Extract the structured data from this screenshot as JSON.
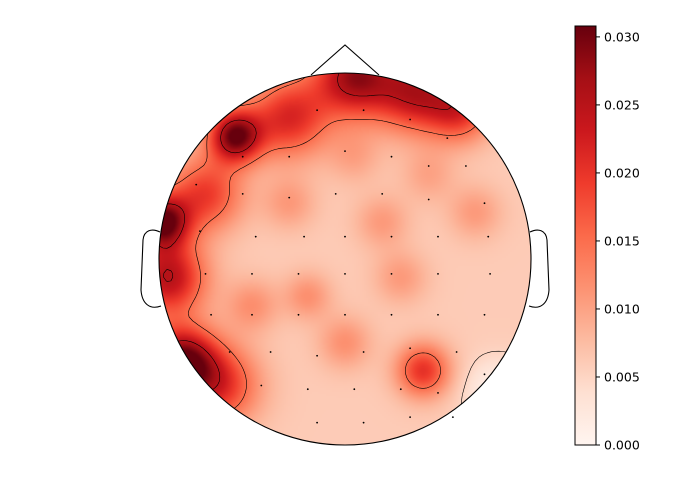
{
  "chart_data": {
    "type": "heatmap",
    "subtype": "eeg-topomap",
    "title": "",
    "colormap": "Reds",
    "colormap_stops": [
      "#fff5f0",
      "#fee0d2",
      "#fcbba1",
      "#fc9272",
      "#fb6a4a",
      "#ef3b2c",
      "#cb181d",
      "#a50f15",
      "#67000d"
    ],
    "outline_color": "#000000",
    "sensor_color": "#000000",
    "colorbar": {
      "range": [
        0,
        0.0308
      ],
      "ticks": [
        0.0,
        0.005,
        0.01,
        0.015,
        0.02,
        0.025,
        0.03
      ],
      "tick_labels": [
        "0.000",
        "0.005",
        "0.010",
        "0.015",
        "0.020",
        "0.025",
        "0.030"
      ]
    },
    "features": [
      {
        "name": "left-front-max",
        "x": -0.59,
        "y": 0.66,
        "value": 0.031,
        "sigma": 0.1
      },
      {
        "name": "front-band-left",
        "x": -0.3,
        "y": 0.76,
        "value": 0.022,
        "sigma": 0.15
      },
      {
        "name": "front-top-peak",
        "x": 0.05,
        "y": 0.98,
        "value": 0.028,
        "sigma": 0.15
      },
      {
        "name": "front-band-right",
        "x": 0.38,
        "y": 0.9,
        "value": 0.025,
        "sigma": 0.15
      },
      {
        "name": "right-front",
        "x": 0.62,
        "y": 0.8,
        "value": 0.02,
        "sigma": 0.12
      },
      {
        "name": "left-edge-upper",
        "x": -0.98,
        "y": 0.2,
        "value": 0.031,
        "sigma": 0.1
      },
      {
        "name": "left-edge-mid",
        "x": -0.95,
        "y": -0.1,
        "value": 0.026,
        "sigma": 0.14
      },
      {
        "name": "left-edge-lower",
        "x": -0.88,
        "y": -0.55,
        "value": 0.031,
        "sigma": 0.13
      },
      {
        "name": "left-lateral",
        "x": -0.75,
        "y": 0.35,
        "value": 0.02,
        "sigma": 0.14
      },
      {
        "name": "left-lower-band",
        "x": -0.68,
        "y": -0.68,
        "value": 0.021,
        "sigma": 0.15
      },
      {
        "name": "right-lower-blob",
        "x": 0.42,
        "y": -0.6,
        "value": 0.021,
        "sigma": 0.1
      },
      {
        "name": "center-a",
        "x": -0.3,
        "y": 0.3,
        "value": 0.011,
        "sigma": 0.1
      },
      {
        "name": "center-b",
        "x": 0.2,
        "y": 0.2,
        "value": 0.011,
        "sigma": 0.1
      },
      {
        "name": "center-c",
        "x": -0.2,
        "y": -0.2,
        "value": 0.012,
        "sigma": 0.09
      },
      {
        "name": "center-d",
        "x": 0.3,
        "y": -0.1,
        "value": 0.011,
        "sigma": 0.1
      },
      {
        "name": "center-e",
        "x": 0.0,
        "y": -0.45,
        "value": 0.012,
        "sigma": 0.1
      },
      {
        "name": "center-f",
        "x": -0.5,
        "y": -0.25,
        "value": 0.012,
        "sigma": 0.1
      },
      {
        "name": "center-g",
        "x": 0.7,
        "y": 0.25,
        "value": 0.011,
        "sigma": 0.1
      },
      {
        "name": "center-h",
        "x": 0.45,
        "y": 0.45,
        "value": 0.01,
        "sigma": 0.1
      },
      {
        "name": "center-i",
        "x": 0.05,
        "y": 0.55,
        "value": 0.01,
        "sigma": 0.1
      },
      {
        "name": "right-bottom-min",
        "x": 0.82,
        "y": -0.72,
        "value": 0.0,
        "sigma": 0.12
      }
    ],
    "baseline_value": 0.006,
    "sensors": [
      [
        -0.15,
        0.8
      ],
      [
        0.1,
        0.8
      ],
      [
        0.35,
        0.75
      ],
      [
        0.55,
        0.65
      ],
      [
        -0.55,
        0.55
      ],
      [
        -0.3,
        0.55
      ],
      [
        0.0,
        0.58
      ],
      [
        0.25,
        0.55
      ],
      [
        0.45,
        0.5
      ],
      [
        0.65,
        0.5
      ],
      [
        -0.8,
        0.4
      ],
      [
        -0.55,
        0.35
      ],
      [
        -0.3,
        0.33
      ],
      [
        -0.05,
        0.35
      ],
      [
        0.2,
        0.35
      ],
      [
        0.45,
        0.32
      ],
      [
        0.75,
        0.3
      ],
      [
        -0.78,
        0.15
      ],
      [
        -0.48,
        0.12
      ],
      [
        -0.22,
        0.12
      ],
      [
        0.0,
        0.12
      ],
      [
        0.25,
        0.12
      ],
      [
        0.5,
        0.12
      ],
      [
        0.77,
        0.12
      ],
      [
        -0.75,
        -0.08
      ],
      [
        -0.5,
        -0.08
      ],
      [
        -0.25,
        -0.08
      ],
      [
        0.0,
        -0.08
      ],
      [
        0.25,
        -0.08
      ],
      [
        0.5,
        -0.08
      ],
      [
        0.78,
        -0.08
      ],
      [
        -0.72,
        -0.3
      ],
      [
        -0.5,
        -0.3
      ],
      [
        -0.25,
        -0.3
      ],
      [
        0.0,
        -0.3
      ],
      [
        0.25,
        -0.3
      ],
      [
        0.5,
        -0.3
      ],
      [
        0.75,
        -0.3
      ],
      [
        -0.62,
        -0.5
      ],
      [
        -0.4,
        -0.5
      ],
      [
        -0.15,
        -0.52
      ],
      [
        0.1,
        -0.5
      ],
      [
        0.35,
        -0.48
      ],
      [
        0.6,
        -0.5
      ],
      [
        -0.45,
        -0.68
      ],
      [
        -0.2,
        -0.7
      ],
      [
        0.05,
        -0.7
      ],
      [
        0.3,
        -0.7
      ],
      [
        0.5,
        -0.72
      ],
      [
        -0.15,
        -0.88
      ],
      [
        0.1,
        -0.88
      ],
      [
        0.35,
        -0.85
      ],
      [
        0.58,
        -0.85
      ],
      [
        0.75,
        -0.62
      ]
    ]
  }
}
